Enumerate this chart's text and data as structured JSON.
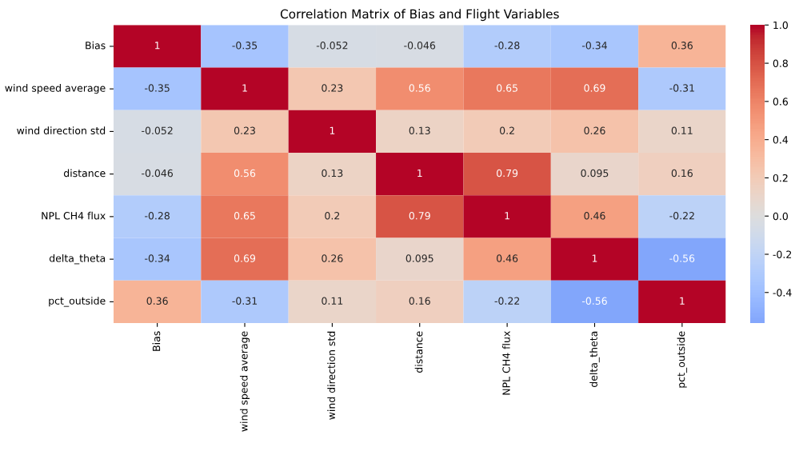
{
  "chart_data": {
    "type": "heatmap",
    "title": "Correlation Matrix of Bias and Flight Variables",
    "categories": [
      "Bias",
      "wind speed average",
      "wind direction std",
      "distance",
      "NPL CH4 flux",
      "delta_theta",
      "pct_outside"
    ],
    "y_categories": [
      "Bias",
      "wind speed average",
      "wind direction std",
      "distance",
      "NPL CH4 flux",
      "delta_theta",
      "pct_outside"
    ],
    "cells": [
      [
        1,
        -0.35,
        -0.052,
        -0.046,
        -0.28,
        -0.34,
        0.36
      ],
      [
        -0.35,
        1,
        0.23,
        0.56,
        0.65,
        0.69,
        -0.31
      ],
      [
        -0.052,
        0.23,
        1,
        0.13,
        0.2,
        0.26,
        0.11
      ],
      [
        -0.046,
        0.56,
        0.13,
        1,
        0.79,
        0.095,
        0.16
      ],
      [
        -0.28,
        0.65,
        0.2,
        0.79,
        1,
        0.46,
        -0.22
      ],
      [
        -0.34,
        0.69,
        0.26,
        0.095,
        0.46,
        1,
        -0.56
      ],
      [
        0.36,
        -0.31,
        0.11,
        0.16,
        -0.22,
        -0.56,
        1
      ]
    ],
    "clim": [
      -0.56,
      1.0
    ],
    "cticks": [
      -0.4,
      -0.2,
      {
        "value": 0,
        "label": "0.0"
      },
      0.2,
      0.4,
      0.6,
      0.8,
      {
        "value": 1,
        "label": "1.0"
      }
    ],
    "data_labels": true
  }
}
